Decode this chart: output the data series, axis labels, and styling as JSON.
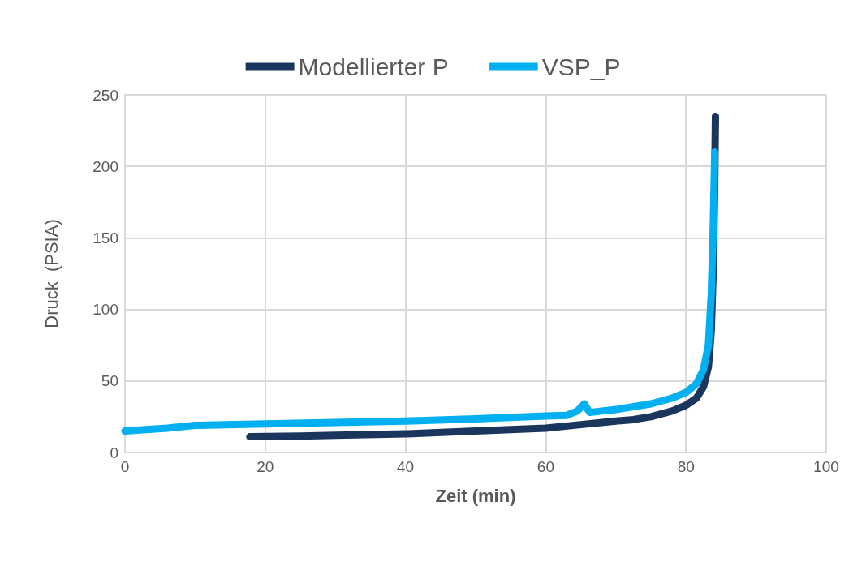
{
  "chart_data": {
    "type": "line",
    "xlabel": "Zeit (min)",
    "ylabel": "Druck  (PSIA)",
    "xlim": [
      0,
      100
    ],
    "xticks": [
      0,
      20,
      40,
      60,
      80,
      100
    ],
    "ylim": [
      0,
      250
    ],
    "yticks": [
      0,
      50,
      100,
      150,
      200,
      250
    ],
    "grid": true,
    "legend": "top",
    "marker": "none",
    "line_style": "solid",
    "series": [
      {
        "name": "Modellierter P",
        "color": "#1b365d",
        "x": [
          17.8,
          25,
          30,
          40,
          50,
          60,
          65,
          70,
          72.5,
          75,
          78,
          80,
          81.5,
          82.5,
          83.2,
          83.6,
          83.9,
          84.1,
          84.2
        ],
        "values": [
          11,
          11.5,
          12,
          13,
          15,
          17,
          19.5,
          22,
          23,
          25,
          29,
          33,
          38,
          46,
          60,
          85,
          130,
          190,
          235
        ]
      },
      {
        "name": "VSP_P",
        "color": "#00b0f0",
        "x": [
          0,
          3,
          6,
          10,
          20,
          30,
          40,
          50,
          60,
          63,
          64.5,
          65.5,
          66,
          66.3,
          68,
          70,
          75,
          78,
          80,
          81.5,
          82.5,
          83.2,
          83.6,
          83.9,
          84.1
        ],
        "values": [
          15,
          16,
          17,
          19,
          20,
          21,
          22,
          23.5,
          25.5,
          26,
          29,
          34,
          30,
          28,
          29,
          30,
          34,
          38,
          42,
          48,
          58,
          75,
          110,
          160,
          210
        ]
      }
    ]
  }
}
